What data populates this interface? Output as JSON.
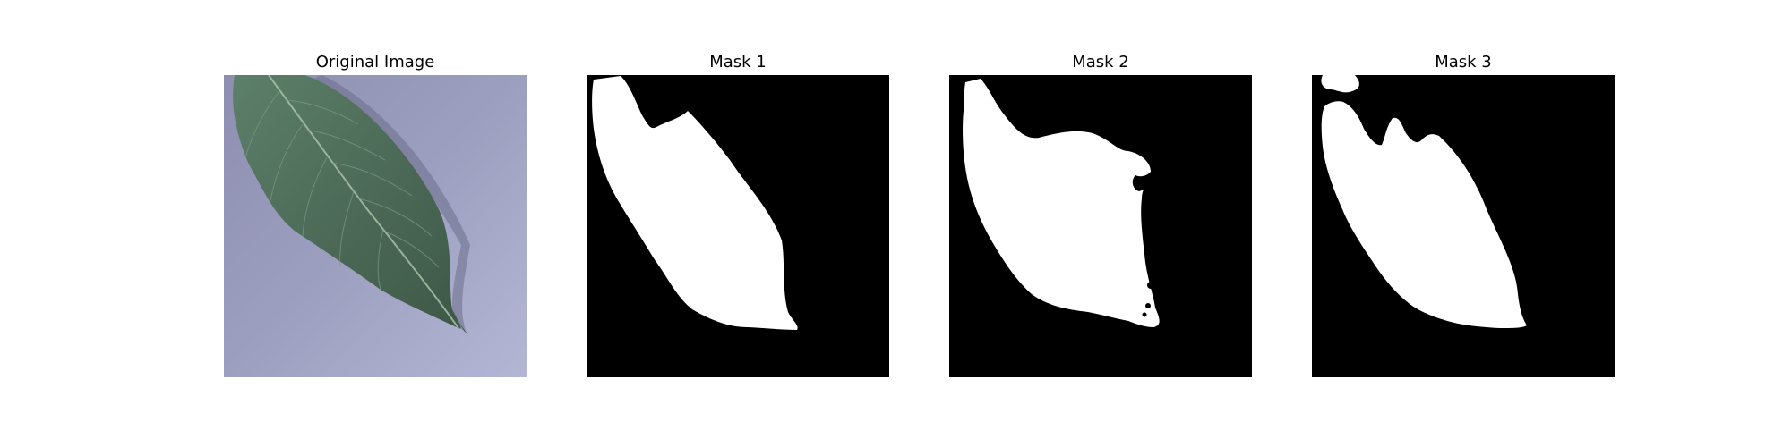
{
  "figure": {
    "panels": [
      {
        "title": "Original Image"
      },
      {
        "title": "Mask 1"
      },
      {
        "title": "Mask 2"
      },
      {
        "title": "Mask 3"
      }
    ]
  },
  "colors": {
    "mask_background": "#000000",
    "mask_foreground": "#ffffff",
    "leaf_green": "#4e6b58",
    "background_lavender": "#9d9fc0"
  }
}
